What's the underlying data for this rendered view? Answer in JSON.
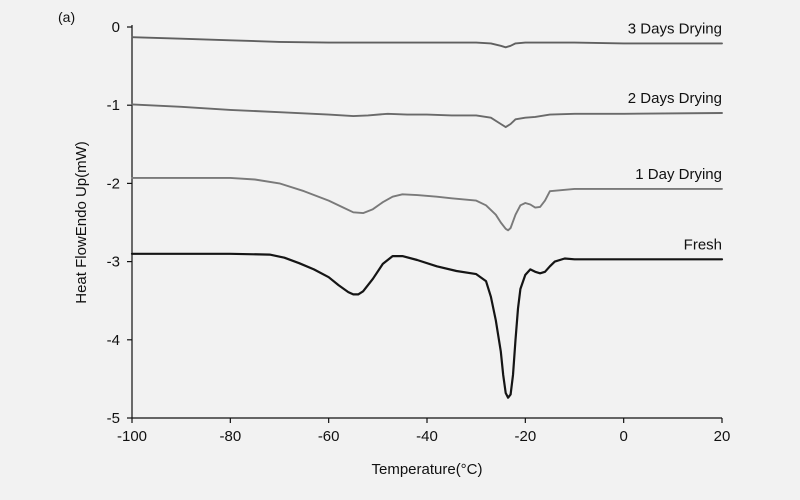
{
  "panel_label": "(a)",
  "chart_data": {
    "type": "line",
    "title": "",
    "xlabel": "Temperature(°C)",
    "ylabel": "Heat FlowEndo Up(mW)",
    "xlim": [
      -100,
      20
    ],
    "ylim": [
      -5,
      0
    ],
    "x_ticks": [
      -100,
      -80,
      -60,
      -40,
      -20,
      0,
      20
    ],
    "y_ticks": [
      0,
      -1,
      -2,
      -3,
      -4,
      -5
    ],
    "grid": false,
    "legend": "none (series labeled directly above curves, right side)",
    "series": [
      {
        "name": "3 Days Drying",
        "color": "#606060",
        "x": [
          -100,
          -90,
          -80,
          -70,
          -60,
          -50,
          -40,
          -30,
          -27,
          -25,
          -24,
          -23,
          -22,
          -20,
          -10,
          0,
          20
        ],
        "y": [
          -0.13,
          -0.15,
          -0.17,
          -0.19,
          -0.2,
          -0.2,
          -0.2,
          -0.2,
          -0.21,
          -0.24,
          -0.26,
          -0.24,
          -0.21,
          -0.2,
          -0.2,
          -0.21,
          -0.21
        ]
      },
      {
        "name": "2 Days Drying",
        "color": "#6a6a6a",
        "x": [
          -100,
          -90,
          -80,
          -70,
          -60,
          -55,
          -52,
          -48,
          -44,
          -40,
          -35,
          -30,
          -27,
          -25,
          -24,
          -23,
          -22,
          -20,
          -18,
          -15,
          -10,
          0,
          20
        ],
        "y": [
          -0.99,
          -1.02,
          -1.06,
          -1.09,
          -1.12,
          -1.14,
          -1.13,
          -1.11,
          -1.12,
          -1.12,
          -1.13,
          -1.13,
          -1.16,
          -1.24,
          -1.28,
          -1.24,
          -1.18,
          -1.16,
          -1.15,
          -1.12,
          -1.11,
          -1.11,
          -1.1
        ]
      },
      {
        "name": "1 Day Drying",
        "color": "#7a7a7a",
        "x": [
          -100,
          -90,
          -80,
          -75,
          -70,
          -65,
          -60,
          -57,
          -55,
          -53,
          -51,
          -49,
          -47,
          -45,
          -42,
          -38,
          -35,
          -30,
          -28,
          -26,
          -25,
          -24,
          -23.5,
          -23,
          -22,
          -21,
          -20,
          -19,
          -18,
          -17,
          -16,
          -15,
          -10,
          0,
          20
        ],
        "y": [
          -1.93,
          -1.93,
          -1.93,
          -1.95,
          -2.0,
          -2.1,
          -2.22,
          -2.31,
          -2.37,
          -2.38,
          -2.33,
          -2.24,
          -2.17,
          -2.14,
          -2.15,
          -2.17,
          -2.19,
          -2.22,
          -2.28,
          -2.4,
          -2.5,
          -2.58,
          -2.6,
          -2.57,
          -2.4,
          -2.28,
          -2.25,
          -2.27,
          -2.31,
          -2.3,
          -2.22,
          -2.1,
          -2.07,
          -2.07,
          -2.07
        ]
      },
      {
        "name": "Fresh",
        "color": "#151515",
        "x": [
          -100,
          -90,
          -80,
          -72,
          -69,
          -66,
          -63,
          -60,
          -58,
          -56,
          -55,
          -54,
          -53,
          -51,
          -49,
          -47,
          -45,
          -42,
          -38,
          -34,
          -30,
          -28,
          -27,
          -26,
          -25,
          -24.5,
          -24,
          -23.5,
          -23,
          -22.5,
          -22,
          -21.5,
          -21,
          -20,
          -19,
          -18,
          -17,
          -16,
          -15,
          -14,
          -12,
          -10,
          0,
          20
        ],
        "y": [
          -2.9,
          -2.9,
          -2.9,
          -2.91,
          -2.95,
          -3.02,
          -3.1,
          -3.2,
          -3.3,
          -3.39,
          -3.42,
          -3.42,
          -3.38,
          -3.22,
          -3.03,
          -2.93,
          -2.93,
          -2.98,
          -3.06,
          -3.12,
          -3.16,
          -3.25,
          -3.45,
          -3.75,
          -4.15,
          -4.45,
          -4.68,
          -4.74,
          -4.7,
          -4.45,
          -4.0,
          -3.6,
          -3.35,
          -3.17,
          -3.1,
          -3.13,
          -3.15,
          -3.13,
          -3.06,
          -3.0,
          -2.96,
          -2.97,
          -2.97,
          -2.97
        ]
      }
    ]
  }
}
